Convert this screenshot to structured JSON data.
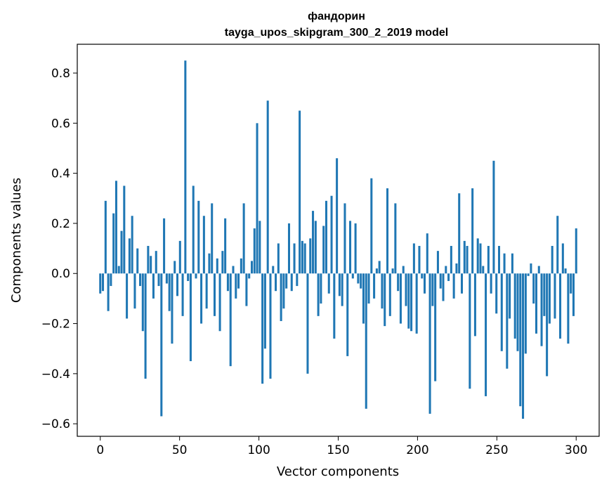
{
  "chart_data": {
    "type": "bar",
    "title": "фандорин",
    "subtitle": "tayga_upos_skipgram_300_2_2019 model",
    "xlabel": "Vector components",
    "ylabel": "Components values",
    "xlim": [
      -14.5,
      314.5
    ],
    "ylim": [
      -0.65,
      0.915
    ],
    "x_ticks": [
      0,
      50,
      100,
      150,
      200,
      250,
      300
    ],
    "x_tick_labels": [
      "0",
      "50",
      "100",
      "150",
      "200",
      "250",
      "300"
    ],
    "y_ticks": [
      -0.6,
      -0.4,
      -0.2,
      0.0,
      0.2,
      0.4,
      0.6,
      0.8
    ],
    "y_tick_labels": [
      "−0.6",
      "−0.4",
      "−0.2",
      "0.0",
      "0.2",
      "0.4",
      "0.6",
      "0.8"
    ],
    "grid": false,
    "legend": "none",
    "bar_color": "#1f77b4",
    "values": [
      -0.08,
      -0.07,
      0.29,
      -0.15,
      -0.05,
      0.24,
      0.37,
      0.03,
      0.17,
      0.35,
      -0.18,
      0.14,
      0.23,
      -0.14,
      0.1,
      -0.05,
      -0.23,
      -0.42,
      0.11,
      0.07,
      -0.1,
      0.09,
      -0.05,
      -0.57,
      0.22,
      -0.04,
      -0.15,
      -0.28,
      0.05,
      -0.09,
      0.13,
      -0.17,
      0.85,
      -0.03,
      -0.35,
      0.35,
      -0.02,
      0.29,
      -0.2,
      0.23,
      -0.14,
      0.08,
      0.28,
      -0.17,
      0.06,
      -0.23,
      0.09,
      0.22,
      -0.07,
      -0.37,
      0.03,
      -0.1,
      -0.06,
      0.06,
      0.28,
      -0.13,
      -0.02,
      0.05,
      0.18,
      0.6,
      0.21,
      -0.44,
      -0.3,
      0.69,
      -0.42,
      0.03,
      -0.07,
      0.12,
      -0.19,
      -0.14,
      -0.06,
      0.2,
      -0.07,
      0.12,
      -0.05,
      0.65,
      0.13,
      0.12,
      -0.4,
      0.14,
      0.25,
      0.21,
      -0.17,
      -0.12,
      0.19,
      0.29,
      -0.08,
      0.31,
      -0.26,
      0.46,
      -0.09,
      -0.13,
      0.28,
      -0.33,
      0.21,
      -0.02,
      0.2,
      -0.04,
      -0.06,
      -0.2,
      -0.54,
      -0.12,
      0.38,
      -0.1,
      0.02,
      0.05,
      -0.14,
      -0.21,
      0.34,
      -0.17,
      0.02,
      0.28,
      -0.07,
      -0.2,
      0.03,
      -0.13,
      -0.22,
      -0.23,
      0.12,
      -0.24,
      0.11,
      -0.02,
      -0.08,
      0.16,
      -0.56,
      -0.13,
      -0.43,
      0.09,
      -0.06,
      -0.11,
      0.03,
      -0.03,
      0.11,
      -0.1,
      0.04,
      0.32,
      -0.08,
      0.13,
      0.11,
      -0.46,
      0.34,
      -0.25,
      0.14,
      0.12,
      0.03,
      -0.49,
      0.11,
      -0.08,
      0.45,
      -0.16,
      0.11,
      -0.31,
      0.08,
      -0.38,
      -0.18,
      0.08,
      -0.26,
      -0.31,
      -0.53,
      -0.58,
      -0.32,
      -0.01,
      0.04,
      -0.12,
      -0.24,
      0.03,
      -0.29,
      -0.17,
      -0.41,
      -0.2,
      0.11,
      -0.18,
      0.23,
      -0.26,
      0.12,
      0.02,
      -0.28,
      -0.08,
      -0.17,
      0.18
    ]
  }
}
